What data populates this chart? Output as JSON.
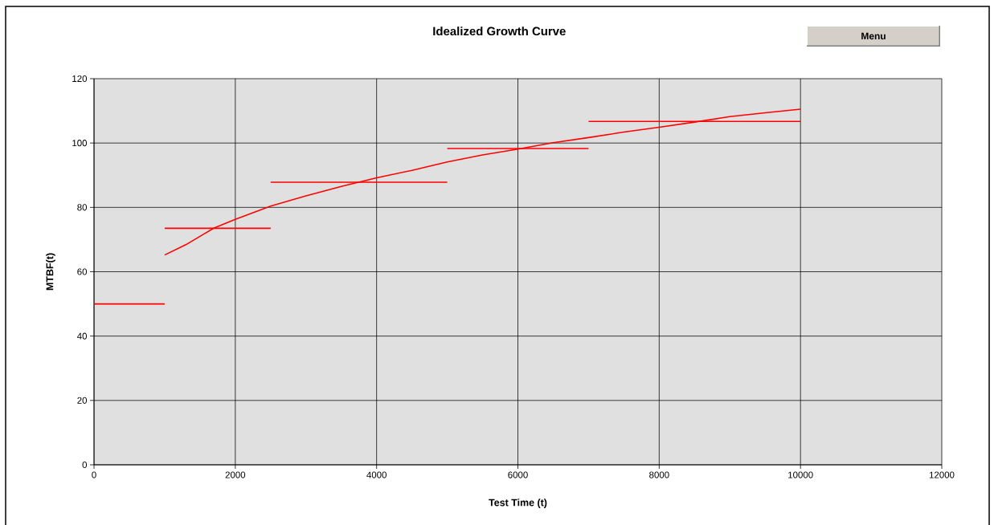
{
  "chart_data": {
    "type": "line",
    "title": "Idealized Growth Curve",
    "xlabel": "Test Time (t)",
    "ylabel": "MTBF(t)",
    "annotations": [
      "Menu"
    ],
    "xlim": [
      0,
      12000
    ],
    "ylim": [
      0,
      120
    ],
    "xticks": [
      0,
      2000,
      4000,
      6000,
      8000,
      10000,
      12000
    ],
    "yticks": [
      0,
      20,
      40,
      60,
      80,
      100,
      120
    ],
    "grid": true,
    "marker": "none",
    "line_style": "solid",
    "series": [
      {
        "color": "#ff0000",
        "x": [
          1000,
          1300,
          1700,
          2000,
          2500,
          3000,
          3500,
          4000,
          4500,
          5000,
          5500,
          6000,
          6500,
          7000,
          7500,
          8000,
          8500,
          9000,
          9500,
          10000
        ],
        "values": [
          65.2,
          68.4,
          73.6,
          76.3,
          80.4,
          83.6,
          86.5,
          89.2,
          91.5,
          94.1,
          96.3,
          98.1,
          100.1,
          101.7,
          103.4,
          104.9,
          106.5,
          108.2,
          109.4,
          110.5
        ]
      },
      {
        "color": "#ff0000",
        "x": [
          0,
          1000
        ],
        "values": [
          50,
          50
        ]
      },
      {
        "color": "#ff0000",
        "x": [
          1000,
          2500
        ],
        "values": [
          73.5,
          73.5
        ]
      },
      {
        "color": "#ff0000",
        "x": [
          2500,
          5000
        ],
        "values": [
          87.8,
          87.8
        ]
      },
      {
        "color": "#ff0000",
        "x": [
          5000,
          7000
        ],
        "values": [
          98.3,
          98.3
        ]
      },
      {
        "color": "#ff0000",
        "x": [
          7000,
          10000
        ],
        "values": [
          106.7,
          106.7
        ]
      }
    ]
  }
}
